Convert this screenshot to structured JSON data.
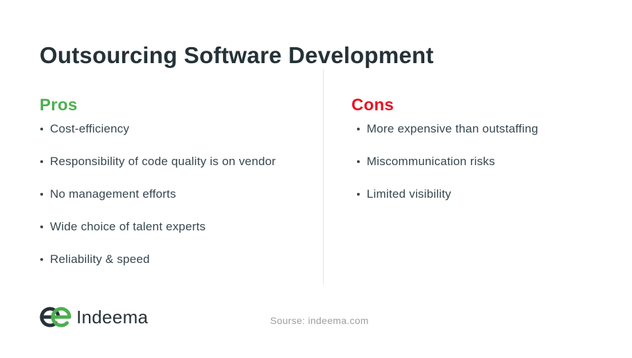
{
  "page": {
    "title": "Outsourcing Software Development"
  },
  "pros": {
    "heading": "Pros",
    "color": "#4CAF50",
    "items": [
      "Cost-efficiency",
      "Responsibility of code quality is on vendor",
      "No management efforts",
      "Wide choice of talent experts",
      "Reliability & speed"
    ]
  },
  "cons": {
    "heading": "Cons",
    "color": "#E81123",
    "items": [
      "More expensive than outstaffing",
      "Miscommunication risks",
      "Limited visibility"
    ]
  },
  "footer": {
    "logo_text": "Indeema",
    "source_text": "Sourse: indeema.com"
  },
  "colors": {
    "background": "#FFFFFF",
    "title_text": "#263238",
    "body_text": "#37474F",
    "pros_accent": "#4CAF50",
    "cons_accent": "#E81123",
    "divider": "#E3E3E3",
    "source_text": "#9E9E9E",
    "logo_dark": "#263238",
    "logo_green": "#4CAF50"
  }
}
